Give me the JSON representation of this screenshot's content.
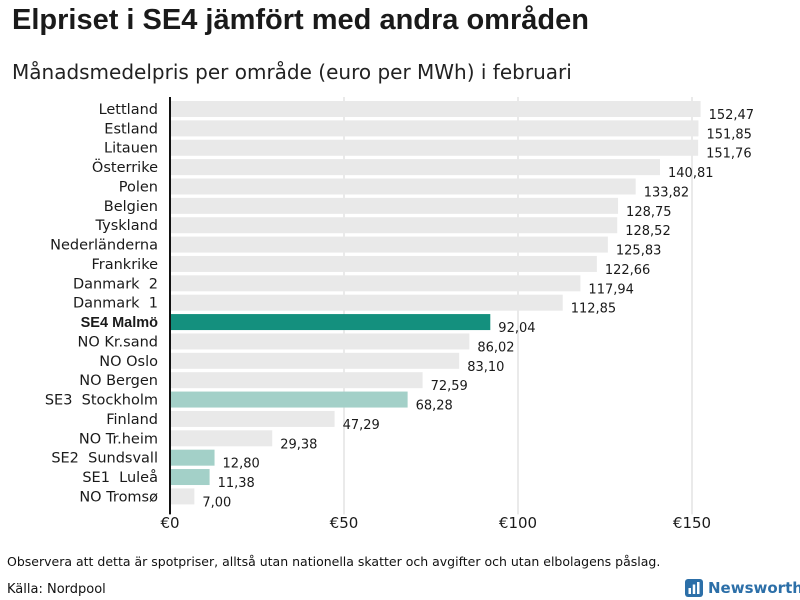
{
  "header": {
    "title": "Elpriset i SE4 jämfört med andra områden",
    "subtitle": "Månadsmedelpris per område (euro per MWh) i februari"
  },
  "footer": {
    "note": "Observera att detta är spotpriser, alltså utan nationella skatter och avgifter och utan elbolagens påslag.",
    "source": "Källa: Nordpool",
    "brand": "Newsworthy",
    "brand_icon": "newsworthy-logo-icon"
  },
  "colors": {
    "bar": "#e9e9e9",
    "highlight": "#14907e",
    "highlight_light": "#a3d0c8",
    "axis": "#111111",
    "grid": "#d6d6d6",
    "brand": "#2c6fa8"
  },
  "chart_data": {
    "type": "bar",
    "orientation": "horizontal",
    "title": "Elpriset i SE4 jämfört med andra områden",
    "subtitle": "Månadsmedelpris per område (euro per MWh) i februari",
    "xlim": [
      0,
      160
    ],
    "ticks": [
      0,
      50,
      100,
      150
    ],
    "tick_labels": [
      "€0",
      "€50",
      "€100",
      "€150"
    ],
    "categories": [
      "Lettland",
      "Estland",
      "Litauen",
      "Österrike",
      "Polen",
      "Belgien",
      "Tyskland",
      "Nederländerna",
      "Frankrike",
      "Danmark  2",
      "Danmark  1",
      "SE4 Malmö",
      "NO Kr.sand",
      "NO Oslo",
      "NO Bergen",
      "SE3  Stockholm",
      "Finland",
      "NO Tr.heim",
      "SE2  Sundsvall",
      "SE1  Luleå",
      "NO Tromsø"
    ],
    "values": [
      152.47,
      151.85,
      151.76,
      140.81,
      133.82,
      128.75,
      128.52,
      125.83,
      122.66,
      117.94,
      112.85,
      92.04,
      86.02,
      83.1,
      72.59,
      68.28,
      47.29,
      29.38,
      12.8,
      11.38,
      7.0
    ],
    "value_labels": [
      "152,47",
      "151,85",
      "151,76",
      "140,81",
      "133,82",
      "128,75",
      "128,52",
      "125,83",
      "122,66",
      "117,94",
      "112,85",
      "92,04",
      "86,02",
      "83,10",
      "72,59",
      "68,28",
      "47,29",
      "29,38",
      "12,80",
      "11,38",
      "7,00"
    ],
    "highlight": [
      "normal",
      "normal",
      "normal",
      "normal",
      "normal",
      "normal",
      "normal",
      "normal",
      "normal",
      "normal",
      "normal",
      "strong",
      "normal",
      "normal",
      "normal",
      "light",
      "normal",
      "normal",
      "light",
      "light",
      "normal"
    ]
  }
}
